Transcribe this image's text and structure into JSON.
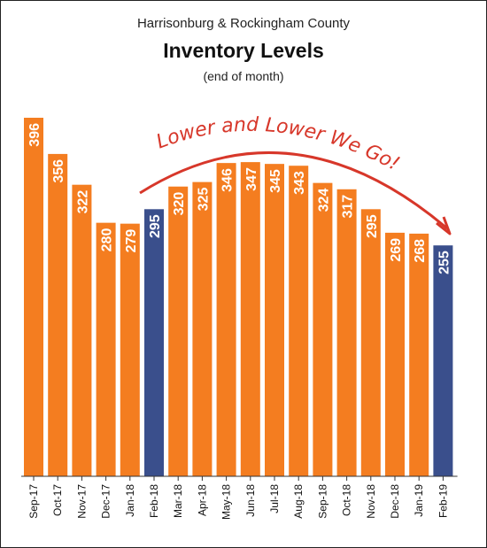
{
  "chart_data": {
    "type": "bar",
    "title": "Harrisonburg & Rockingham County",
    "subtitle": "Inventory Levels",
    "subtitle2": "(end of month)",
    "annotation": "Lower and Lower We Go!",
    "categories": [
      "Sep-17",
      "Oct-17",
      "Nov-17",
      "Dec-17",
      "Jan-18",
      "Feb-18",
      "Mar-18",
      "Apr-18",
      "May-18",
      "Jun-18",
      "Jul-18",
      "Aug-18",
      "Sep-18",
      "Oct-18",
      "Nov-18",
      "Dec-18",
      "Jan-19",
      "Feb-19"
    ],
    "values": [
      396,
      356,
      322,
      280,
      279,
      295,
      320,
      325,
      346,
      347,
      345,
      343,
      324,
      317,
      295,
      269,
      268,
      255
    ],
    "highlight": [
      "Feb-18",
      "Feb-19"
    ],
    "ylim": [
      0,
      420
    ],
    "grid": false,
    "colors": {
      "bar": "#f47d20",
      "highlight": "#3a4f8c",
      "arrow": "#d7372a"
    }
  }
}
